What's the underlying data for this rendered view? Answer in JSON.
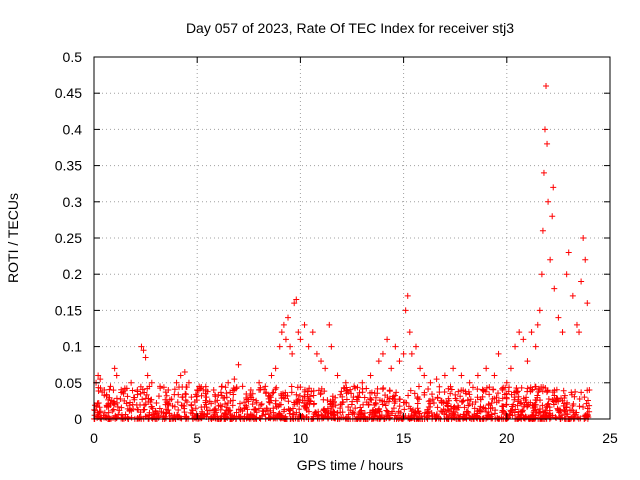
{
  "chart_data": {
    "type": "scatter",
    "title": "Day 057 of 2023, Rate Of TEC Index for receiver stj3",
    "xlabel": "GPS time / hours",
    "ylabel": "ROTI / TECUs",
    "xlim": [
      0,
      25
    ],
    "ylim": [
      0,
      0.5
    ],
    "x_ticks": [
      0,
      5,
      10,
      15,
      20,
      25
    ],
    "x_tick_labels": [
      "0",
      "5",
      "10",
      "15",
      "20",
      "25"
    ],
    "y_ticks": [
      0,
      0.05,
      0.1,
      0.15,
      0.2,
      0.25,
      0.3,
      0.35,
      0.4,
      0.45,
      0.5
    ],
    "y_tick_labels": [
      "0",
      "0.05",
      "0.1",
      "0.15",
      "0.2",
      "0.25",
      "0.3",
      "0.35",
      "0.4",
      "0.45",
      "0.5"
    ],
    "grid": true,
    "marker": "plus",
    "color": "#ff0000",
    "series": [
      {
        "name": "ROTI",
        "points": [
          [
            0.1,
            0.05
          ],
          [
            0.2,
            0.06
          ],
          [
            0.3,
            0.055
          ],
          [
            0.5,
            0.04
          ],
          [
            0.8,
            0.045
          ],
          [
            1.0,
            0.07
          ],
          [
            1.1,
            0.06
          ],
          [
            1.5,
            0.04
          ],
          [
            1.8,
            0.05
          ],
          [
            2.1,
            0.04
          ],
          [
            2.3,
            0.1
          ],
          [
            2.4,
            0.095
          ],
          [
            2.5,
            0.085
          ],
          [
            2.6,
            0.06
          ],
          [
            2.8,
            0.05
          ],
          [
            3.2,
            0.045
          ],
          [
            3.6,
            0.04
          ],
          [
            4.0,
            0.05
          ],
          [
            4.2,
            0.06
          ],
          [
            4.4,
            0.065
          ],
          [
            4.6,
            0.05
          ],
          [
            5.0,
            0.04
          ],
          [
            5.4,
            0.035
          ],
          [
            5.8,
            0.04
          ],
          [
            6.2,
            0.045
          ],
          [
            6.5,
            0.05
          ],
          [
            6.8,
            0.055
          ],
          [
            7.0,
            0.075
          ],
          [
            7.2,
            0.045
          ],
          [
            7.6,
            0.04
          ],
          [
            8.0,
            0.05
          ],
          [
            8.3,
            0.045
          ],
          [
            8.6,
            0.06
          ],
          [
            8.8,
            0.07
          ],
          [
            9.0,
            0.1
          ],
          [
            9.1,
            0.12
          ],
          [
            9.2,
            0.13
          ],
          [
            9.3,
            0.11
          ],
          [
            9.4,
            0.14
          ],
          [
            9.5,
            0.1
          ],
          [
            9.6,
            0.09
          ],
          [
            9.7,
            0.16
          ],
          [
            9.8,
            0.165
          ],
          [
            9.9,
            0.12
          ],
          [
            10.0,
            0.11
          ],
          [
            10.2,
            0.13
          ],
          [
            10.4,
            0.1
          ],
          [
            10.6,
            0.12
          ],
          [
            10.8,
            0.09
          ],
          [
            11.0,
            0.08
          ],
          [
            11.2,
            0.07
          ],
          [
            11.4,
            0.13
          ],
          [
            11.5,
            0.1
          ],
          [
            11.8,
            0.06
          ],
          [
            12.2,
            0.05
          ],
          [
            12.6,
            0.045
          ],
          [
            13.0,
            0.05
          ],
          [
            13.4,
            0.06
          ],
          [
            13.8,
            0.08
          ],
          [
            14.0,
            0.09
          ],
          [
            14.2,
            0.11
          ],
          [
            14.4,
            0.07
          ],
          [
            14.6,
            0.1
          ],
          [
            14.8,
            0.08
          ],
          [
            15.0,
            0.09
          ],
          [
            15.1,
            0.15
          ],
          [
            15.2,
            0.17
          ],
          [
            15.3,
            0.12
          ],
          [
            15.4,
            0.09
          ],
          [
            15.6,
            0.1
          ],
          [
            15.8,
            0.07
          ],
          [
            16.0,
            0.06
          ],
          [
            16.3,
            0.05
          ],
          [
            16.6,
            0.055
          ],
          [
            17.0,
            0.06
          ],
          [
            17.4,
            0.07
          ],
          [
            17.8,
            0.06
          ],
          [
            18.2,
            0.05
          ],
          [
            18.6,
            0.06
          ],
          [
            19.0,
            0.07
          ],
          [
            19.4,
            0.06
          ],
          [
            19.6,
            0.09
          ],
          [
            19.8,
            0.04
          ],
          [
            20.0,
            0.05
          ],
          [
            20.2,
            0.07
          ],
          [
            20.4,
            0.1
          ],
          [
            20.6,
            0.12
          ],
          [
            20.8,
            0.11
          ],
          [
            21.0,
            0.08
          ],
          [
            21.2,
            0.12
          ],
          [
            21.4,
            0.1
          ],
          [
            21.5,
            0.13
          ],
          [
            21.6,
            0.15
          ],
          [
            21.7,
            0.2
          ],
          [
            21.75,
            0.26
          ],
          [
            21.8,
            0.34
          ],
          [
            21.85,
            0.4
          ],
          [
            21.9,
            0.46
          ],
          [
            21.95,
            0.38
          ],
          [
            22.0,
            0.3
          ],
          [
            22.1,
            0.22
          ],
          [
            22.2,
            0.28
          ],
          [
            22.25,
            0.32
          ],
          [
            22.3,
            0.18
          ],
          [
            22.5,
            0.14
          ],
          [
            22.7,
            0.12
          ],
          [
            22.9,
            0.2
          ],
          [
            23.0,
            0.23
          ],
          [
            23.2,
            0.17
          ],
          [
            23.4,
            0.13
          ],
          [
            23.5,
            0.12
          ],
          [
            23.6,
            0.19
          ],
          [
            23.7,
            0.25
          ],
          [
            23.8,
            0.22
          ],
          [
            23.9,
            0.16
          ],
          [
            24.0,
            0.04
          ]
        ]
      }
    ]
  }
}
